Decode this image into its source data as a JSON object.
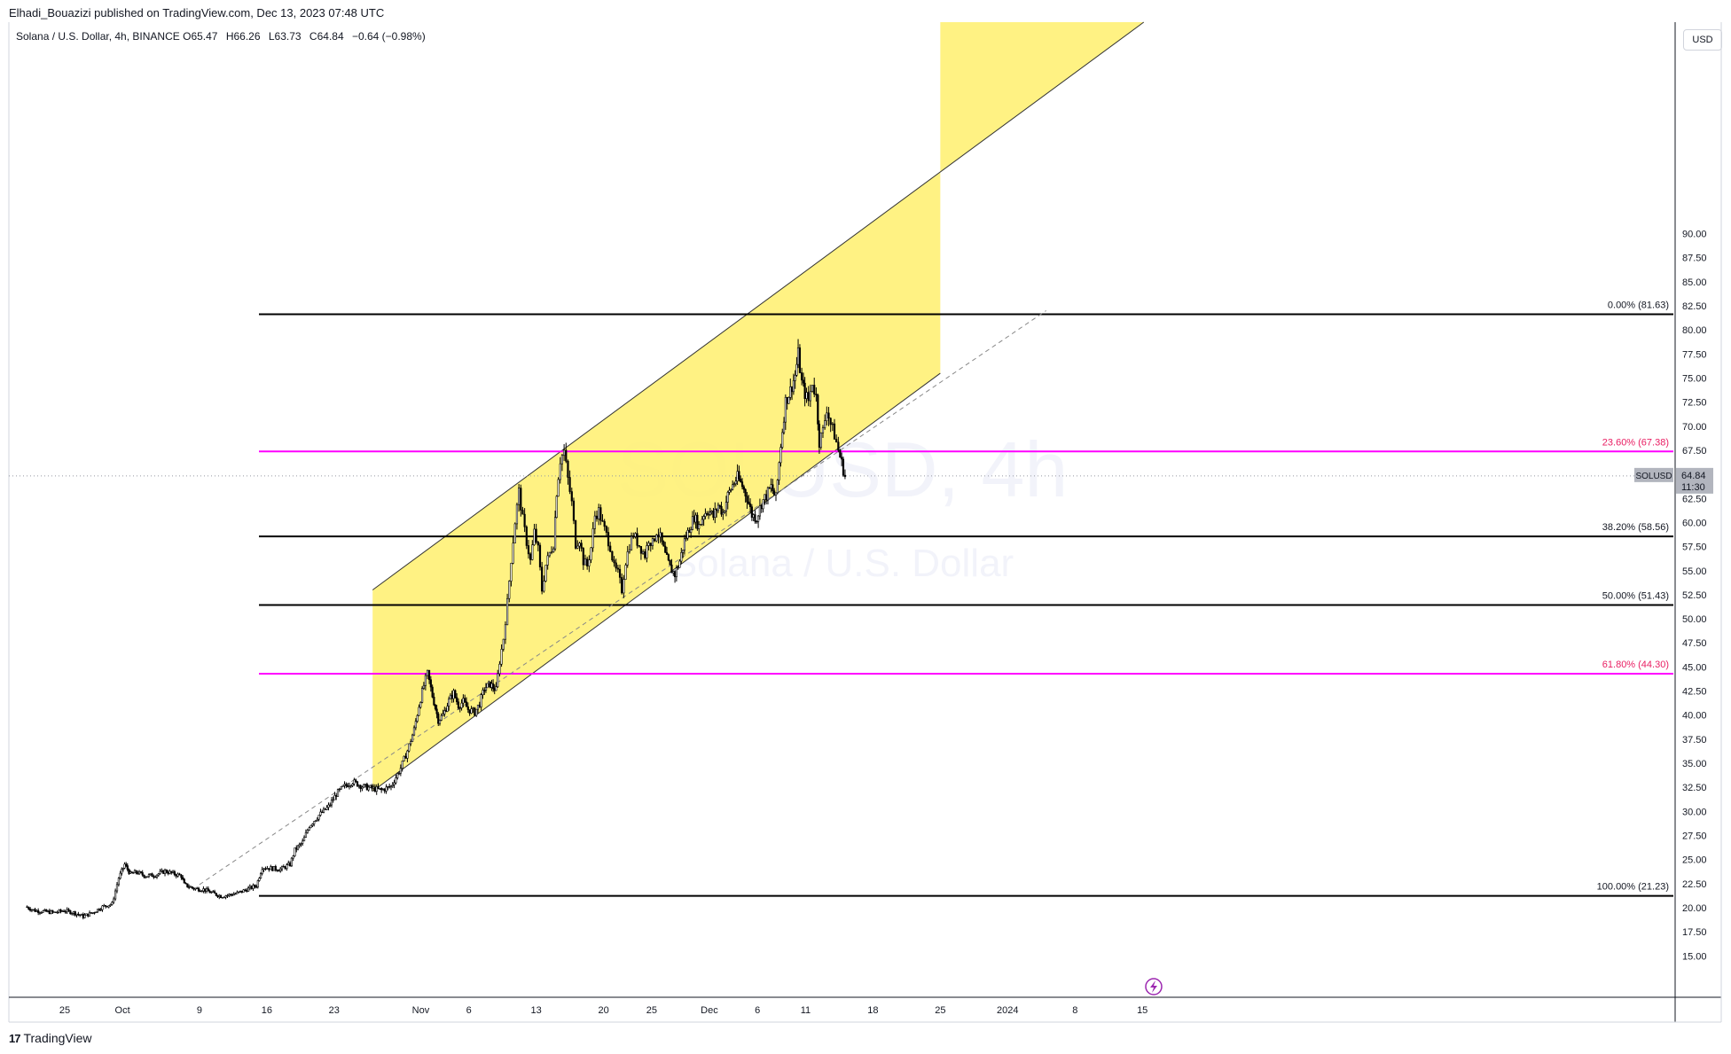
{
  "header": {
    "published_by": "Elhadi_Bouazizi published on TradingView.com, Dec 13, 2023 07:48 UTC"
  },
  "legend": {
    "symbol_line": "Solana / U.S. Dollar, 4h, BINANCE",
    "open_label": "O",
    "open": "65.47",
    "high_label": "H",
    "high": "66.26",
    "low_label": "L",
    "low": "63.73",
    "close_label": "C",
    "close": "64.84",
    "change": "−0.64 (−0.98%)"
  },
  "currency": "USD",
  "watermark": {
    "symbol": "SOLUSD, 4h",
    "name": "Solana / U.S. Dollar"
  },
  "footer": {
    "brand": "TradingView",
    "logo_text": "17"
  },
  "price_tag": {
    "symbol": "SOLUSD",
    "price": "64.84",
    "countdown": "11:30"
  },
  "colors": {
    "channel_fill": "#fff176",
    "fib_black": "#000000",
    "fib_magenta": "#ff00ff",
    "candle": "#000000",
    "magenta_text": "#e91e63"
  },
  "chart_data": {
    "type": "candlestick",
    "title": "Solana / U.S. Dollar, 4h, BINANCE",
    "ylim": [
      12.5,
      93.5
    ],
    "y_ticks": [
      "15.00",
      "17.50",
      "20.00",
      "22.50",
      "25.00",
      "27.50",
      "30.00",
      "32.50",
      "35.00",
      "37.50",
      "40.00",
      "42.50",
      "45.00",
      "47.50",
      "50.00",
      "52.50",
      "55.00",
      "57.50",
      "60.00",
      "62.50",
      "65.00",
      "67.50",
      "70.00",
      "72.50",
      "75.00",
      "77.50",
      "80.00",
      "82.50",
      "85.00",
      "87.50",
      "90.00"
    ],
    "x_ticks": [
      {
        "label": "25",
        "day": 0
      },
      {
        "label": "Oct",
        "day": 6
      },
      {
        "label": "9",
        "day": 14
      },
      {
        "label": "16",
        "day": 21
      },
      {
        "label": "23",
        "day": 28
      },
      {
        "label": "Nov",
        "day": 37
      },
      {
        "label": "6",
        "day": 42
      },
      {
        "label": "13",
        "day": 49
      },
      {
        "label": "20",
        "day": 56
      },
      {
        "label": "25",
        "day": 61
      },
      {
        "label": "Dec",
        "day": 67
      },
      {
        "label": "6",
        "day": 72
      },
      {
        "label": "11",
        "day": 77
      },
      {
        "label": "18",
        "day": 84
      },
      {
        "label": "25",
        "day": 91
      },
      {
        "label": "2024",
        "day": 98
      },
      {
        "label": "8",
        "day": 105
      },
      {
        "label": "15",
        "day": 112
      }
    ],
    "price_path": [
      [
        -4,
        20.1
      ],
      [
        -3,
        19.7
      ],
      [
        -2,
        19.6
      ],
      [
        -1,
        19.5
      ],
      [
        0,
        19.7
      ],
      [
        1,
        19.5
      ],
      [
        2,
        19.1
      ],
      [
        3,
        19.5
      ],
      [
        4,
        20.1
      ],
      [
        5,
        20.4
      ],
      [
        5.7,
        23.1
      ],
      [
        6.3,
        24.5
      ],
      [
        6.9,
        23.5
      ],
      [
        7.5,
        23.7
      ],
      [
        8.5,
        23.3
      ],
      [
        9.5,
        23.4
      ],
      [
        10.5,
        23.8
      ],
      [
        11.5,
        23.5
      ],
      [
        12.2,
        23.3
      ],
      [
        12.5,
        22.4
      ],
      [
        13.5,
        22.0
      ],
      [
        14.5,
        21.9
      ],
      [
        15.5,
        21.5
      ],
      [
        16.3,
        21.2
      ],
      [
        17,
        21.3
      ],
      [
        18,
        21.5
      ],
      [
        19,
        21.9
      ],
      [
        20,
        22.3
      ],
      [
        20.6,
        24.2
      ],
      [
        21.5,
        24.1
      ],
      [
        22.5,
        24.0
      ],
      [
        23.5,
        24.5
      ],
      [
        24,
        26.0
      ],
      [
        24.8,
        26.8
      ],
      [
        25.5,
        28.5
      ],
      [
        26.5,
        29.6
      ],
      [
        27.5,
        30.5
      ],
      [
        28.3,
        31.8
      ],
      [
        29,
        32.5
      ],
      [
        30,
        33.1
      ],
      [
        31,
        32.6
      ],
      [
        32,
        32.4
      ],
      [
        33,
        32.2
      ],
      [
        34,
        32.6
      ],
      [
        35,
        34.5
      ],
      [
        35.7,
        36.3
      ],
      [
        36.4,
        38.5
      ],
      [
        36.9,
        41.0
      ],
      [
        37.4,
        43.1
      ],
      [
        37.8,
        44.3
      ],
      [
        38.3,
        42.0
      ],
      [
        38.9,
        39.5
      ],
      [
        39.4,
        40.0
      ],
      [
        40,
        41.5
      ],
      [
        40.5,
        42.3
      ],
      [
        41,
        41.0
      ],
      [
        41.5,
        41.4
      ],
      [
        42,
        40.6
      ],
      [
        42.7,
        40.3
      ],
      [
        43.2,
        41.2
      ],
      [
        43.7,
        42.8
      ],
      [
        44.3,
        43.2
      ],
      [
        44.9,
        42.6
      ],
      [
        45.3,
        45.6
      ],
      [
        45.7,
        48.0
      ],
      [
        46.1,
        51.7
      ],
      [
        46.5,
        56.2
      ],
      [
        46.9,
        60.1
      ],
      [
        47.3,
        63.2
      ],
      [
        47.7,
        60.3
      ],
      [
        48.1,
        58.0
      ],
      [
        48.5,
        56.0
      ],
      [
        48.9,
        59.0
      ],
      [
        49.3,
        57.2
      ],
      [
        49.7,
        53.0
      ],
      [
        50.1,
        55.6
      ],
      [
        50.5,
        56.8
      ],
      [
        50.9,
        57.8
      ],
      [
        51.2,
        63.2
      ],
      [
        51.6,
        66.5
      ],
      [
        52,
        67.4
      ],
      [
        52.4,
        64.5
      ],
      [
        52.8,
        62.0
      ],
      [
        53.2,
        57.8
      ],
      [
        53.6,
        58.3
      ],
      [
        54,
        56.0
      ],
      [
        54.4,
        55.5
      ],
      [
        54.8,
        57.4
      ],
      [
        55.2,
        60.7
      ],
      [
        55.6,
        61.2
      ],
      [
        56,
        59.8
      ],
      [
        56.4,
        58.7
      ],
      [
        56.8,
        57.5
      ],
      [
        57.2,
        55.3
      ],
      [
        57.6,
        54.7
      ],
      [
        58.0,
        53.0
      ],
      [
        58.4,
        56.0
      ],
      [
        58.8,
        57.7
      ],
      [
        59.2,
        58.8
      ],
      [
        59.6,
        58.0
      ],
      [
        60.0,
        57.3
      ],
      [
        60.4,
        56.6
      ],
      [
        60.8,
        58.3
      ],
      [
        61.2,
        57.8
      ],
      [
        61.6,
        59.1
      ],
      [
        62,
        58.4
      ],
      [
        62.5,
        56.6
      ],
      [
        63,
        55.3
      ],
      [
        63.5,
        54.6
      ],
      [
        64,
        56.0
      ],
      [
        64.5,
        58.1
      ],
      [
        65,
        59.4
      ],
      [
        65.5,
        60.6
      ],
      [
        66,
        59.6
      ],
      [
        66.5,
        60.9
      ],
      [
        67,
        61.3
      ],
      [
        67.5,
        60.6
      ],
      [
        68,
        61.8
      ],
      [
        68.5,
        61.0
      ],
      [
        69,
        62.8
      ],
      [
        69.5,
        63.9
      ],
      [
        70,
        64.7
      ],
      [
        70.5,
        63.8
      ],
      [
        71,
        62.6
      ],
      [
        71.5,
        60.8
      ],
      [
        72,
        60.5
      ],
      [
        72.5,
        62.0
      ],
      [
        73,
        62.8
      ],
      [
        73.5,
        63.7
      ],
      [
        74,
        62.5
      ],
      [
        74.5,
        68.1
      ],
      [
        75,
        72.6
      ],
      [
        75.5,
        73.7
      ],
      [
        76,
        75.3
      ],
      [
        76.3,
        77.5
      ],
      [
        76.7,
        74.5
      ],
      [
        77,
        73.4
      ],
      [
        77.4,
        72.6
      ],
      [
        77.8,
        74.6
      ],
      [
        78.2,
        73.0
      ],
      [
        78.5,
        68.4
      ],
      [
        78.9,
        69.5
      ],
      [
        79.3,
        71.9
      ],
      [
        79.7,
        70.2
      ],
      [
        80.1,
        69.1
      ],
      [
        80.5,
        67.5
      ],
      [
        81,
        65.5
      ],
      [
        81.2,
        64.8
      ]
    ],
    "fib_levels": [
      {
        "label": "0.00% (81.63)",
        "value": 81.63,
        "color": "#000000"
      },
      {
        "label": "23.60% (67.38)",
        "value": 67.38,
        "color": "#ff00ff"
      },
      {
        "label": "38.20% (58.56)",
        "value": 58.56,
        "color": "#000000"
      },
      {
        "label": "50.00% (51.43)",
        "value": 51.43,
        "color": "#000000"
      },
      {
        "label": "61.80% (44.30)",
        "value": 44.3,
        "color": "#ff00ff"
      },
      {
        "label": "100.00% (21.23)",
        "value": 21.23,
        "color": "#000000"
      }
    ],
    "channel": {
      "start_day": 32.0,
      "end_day": 91.0,
      "lower_start": 32.1,
      "lower_end": 75.5,
      "upper_start": 53.0,
      "upper_end": 96.4
    },
    "trend_dashed": {
      "start_day": 14.0,
      "start_value": 22.4,
      "end_day": 102.0,
      "end_value": 82.0
    },
    "last_price": 64.84
  }
}
